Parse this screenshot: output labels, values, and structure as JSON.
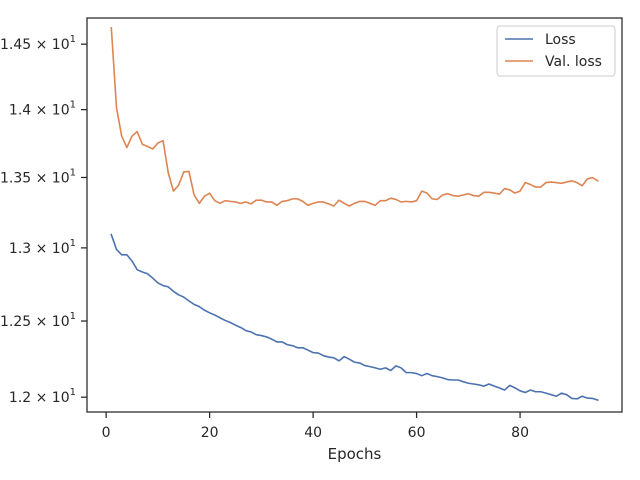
{
  "chart_data": {
    "type": "line",
    "title": "",
    "xlabel": "Epochs",
    "ylabel": "",
    "xlim": [
      -3.7,
      99.7
    ],
    "ylim": [
      11.905,
      14.705
    ],
    "y_scale": "log",
    "grid": false,
    "legend_position": "top-right",
    "x_ticks": [
      0,
      20,
      40,
      60,
      80
    ],
    "x_tick_labels": [
      "0",
      "20",
      "40",
      "60",
      "80"
    ],
    "y_ticks": [
      {
        "value": 12.0,
        "mantissa": "1.2",
        "exponent": "1"
      },
      {
        "value": 12.5,
        "mantissa": "1.25",
        "exponent": "1"
      },
      {
        "value": 13.0,
        "mantissa": "1.3",
        "exponent": "1"
      },
      {
        "value": 13.5,
        "mantissa": "1.35",
        "exponent": "1"
      },
      {
        "value": 14.0,
        "mantissa": "1.4",
        "exponent": "1"
      },
      {
        "value": 14.5,
        "mantissa": "1.45",
        "exponent": "1"
      }
    ],
    "x": [
      1,
      2,
      3,
      4,
      5,
      6,
      7,
      8,
      9,
      10,
      11,
      12,
      13,
      14,
      15,
      16,
      17,
      18,
      19,
      20,
      21,
      22,
      23,
      24,
      25,
      26,
      27,
      28,
      29,
      30,
      31,
      32,
      33,
      34,
      35,
      36,
      37,
      38,
      39,
      40,
      41,
      42,
      43,
      44,
      45,
      46,
      47,
      48,
      49,
      50,
      51,
      52,
      53,
      54,
      55,
      56,
      57,
      58,
      59,
      60,
      61,
      62,
      63,
      64,
      65,
      66,
      67,
      68,
      69,
      70,
      71,
      72,
      73,
      74,
      75,
      76,
      77,
      78,
      79,
      80,
      81,
      82,
      83,
      84,
      85,
      86,
      87,
      88,
      89,
      90,
      91,
      92,
      93,
      94,
      95
    ],
    "series": [
      {
        "name": "Loss",
        "color": "#4c72b0",
        "values": [
          13.093,
          12.989,
          12.952,
          12.952,
          12.909,
          12.849,
          12.833,
          12.821,
          12.791,
          12.758,
          12.74,
          12.731,
          12.701,
          12.677,
          12.661,
          12.636,
          12.612,
          12.597,
          12.573,
          12.555,
          12.54,
          12.522,
          12.504,
          12.49,
          12.472,
          12.457,
          12.436,
          12.427,
          12.409,
          12.403,
          12.394,
          12.379,
          12.361,
          12.361,
          12.343,
          12.336,
          12.322,
          12.322,
          12.307,
          12.29,
          12.287,
          12.27,
          12.261,
          12.256,
          12.236,
          12.264,
          12.247,
          12.227,
          12.222,
          12.205,
          12.198,
          12.19,
          12.181,
          12.19,
          12.173,
          12.203,
          12.19,
          12.159,
          12.159,
          12.153,
          12.139,
          12.153,
          12.139,
          12.133,
          12.125,
          12.114,
          12.111,
          12.111,
          12.1,
          12.09,
          12.085,
          12.08,
          12.071,
          12.085,
          12.071,
          12.06,
          12.046,
          12.076,
          12.06,
          12.041,
          12.03,
          12.046,
          12.035,
          12.035,
          12.026,
          12.016,
          12.006,
          12.026,
          12.016,
          11.992,
          11.989,
          12.006,
          11.994,
          11.992,
          11.981
        ]
      },
      {
        "name": "Val. loss",
        "color": "#dd8452",
        "values": [
          14.628,
          14.016,
          13.803,
          13.718,
          13.803,
          13.836,
          13.742,
          13.727,
          13.708,
          13.752,
          13.769,
          13.535,
          13.402,
          13.444,
          13.54,
          13.544,
          13.374,
          13.314,
          13.365,
          13.387,
          13.333,
          13.314,
          13.333,
          13.328,
          13.324,
          13.314,
          13.324,
          13.31,
          13.337,
          13.337,
          13.324,
          13.324,
          13.3,
          13.328,
          13.333,
          13.346,
          13.346,
          13.328,
          13.3,
          13.314,
          13.324,
          13.324,
          13.31,
          13.295,
          13.337,
          13.314,
          13.295,
          13.314,
          13.328,
          13.328,
          13.314,
          13.3,
          13.333,
          13.333,
          13.351,
          13.342,
          13.324,
          13.328,
          13.324,
          13.333,
          13.402,
          13.388,
          13.346,
          13.342,
          13.374,
          13.383,
          13.37,
          13.365,
          13.374,
          13.383,
          13.37,
          13.365,
          13.393,
          13.393,
          13.388,
          13.379,
          13.42,
          13.411,
          13.388,
          13.402,
          13.463,
          13.449,
          13.431,
          13.431,
          13.463,
          13.467,
          13.463,
          13.458,
          13.467,
          13.476,
          13.463,
          13.44,
          13.49,
          13.499,
          13.476
        ]
      }
    ]
  }
}
